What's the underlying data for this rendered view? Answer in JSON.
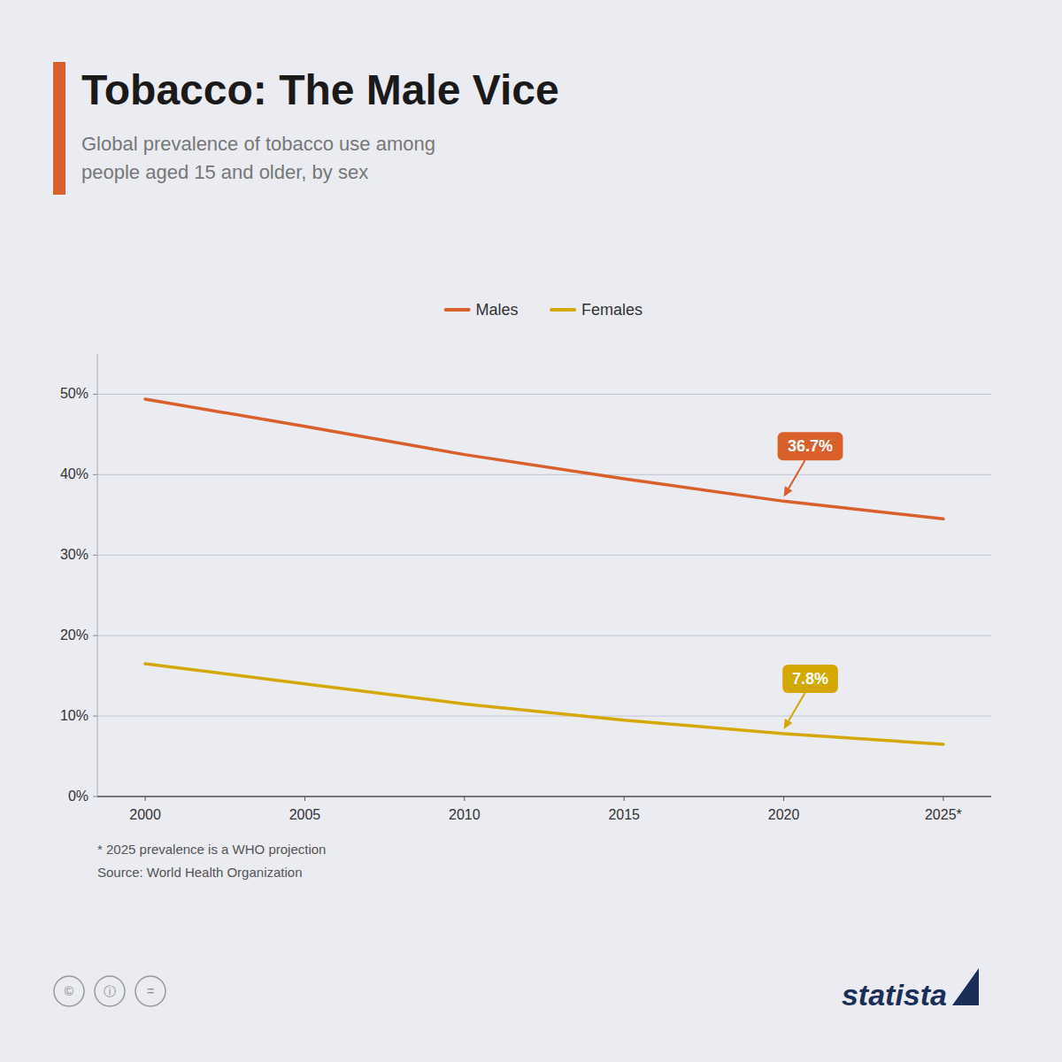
{
  "chart_data": {
    "type": "line",
    "title": "Tobacco: The Male Vice",
    "subtitle": "Global prevalence of tobacco use among\npeople aged 15 and older, by sex",
    "x": [
      2000,
      2005,
      2010,
      2015,
      2020,
      2025
    ],
    "series": [
      {
        "name": "Males",
        "color": "#d95f2b",
        "values": [
          49.4,
          46.0,
          42.5,
          39.5,
          36.7,
          34.5
        ]
      },
      {
        "name": "Females",
        "color": "#d4a800",
        "values": [
          16.5,
          14.0,
          11.5,
          9.5,
          7.8,
          6.5
        ]
      }
    ],
    "xlim": [
      1998.5,
      2026.5
    ],
    "xticks": [
      2000,
      2005,
      2010,
      2015,
      2020,
      {
        "value": 2025,
        "label": "2025*"
      }
    ],
    "ylim": [
      0,
      55
    ],
    "yticks": [
      {
        "value": 0,
        "label": "0%"
      },
      {
        "value": 10,
        "label": "10%"
      },
      {
        "value": 20,
        "label": "20%"
      },
      {
        "value": 30,
        "label": "30%"
      },
      {
        "value": 40,
        "label": "40%"
      },
      {
        "value": 50,
        "label": "50%"
      }
    ],
    "grid": true,
    "legend": "top",
    "annotations": [
      {
        "text": "36.7%",
        "x": 2020,
        "y": 36.7,
        "color": "#d95f2b"
      },
      {
        "text": "7.8%",
        "x": 2020,
        "y": 7.8,
        "color": "#d4a800"
      }
    ],
    "notes": [
      "* 2025 prevalence is a WHO projection",
      "Source: World Health Organization"
    ],
    "logo": "statista",
    "license_icons": [
      "©",
      "ⓘ",
      "="
    ]
  }
}
